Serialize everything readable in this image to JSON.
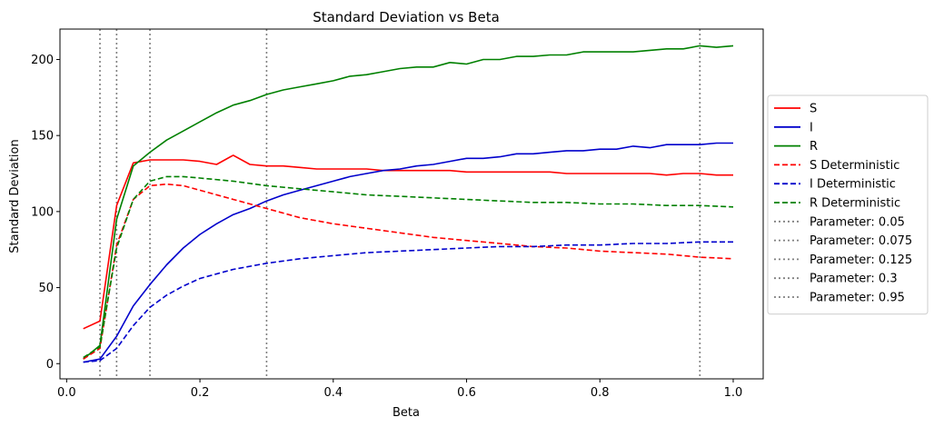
{
  "chart_data": {
    "type": "line",
    "title": "Standard Deviation vs Beta",
    "xlabel": "Beta",
    "ylabel": "Standard Deviation",
    "xlim": [
      -0.01,
      1.045
    ],
    "ylim": [
      -10,
      220
    ],
    "xticks": [
      0.0,
      0.2,
      0.4,
      0.6,
      0.8,
      1.0
    ],
    "xtick_labels": [
      "0.0",
      "0.2",
      "0.4",
      "0.6",
      "0.8",
      "1.0"
    ],
    "yticks": [
      0,
      50,
      100,
      150,
      200
    ],
    "ytick_labels": [
      "0",
      "50",
      "100",
      "150",
      "200"
    ],
    "grid": false,
    "legend_placement": "outside-right",
    "series": [
      {
        "name": "S",
        "color": "#ff0000",
        "style": "solid",
        "x": [
          0.025,
          0.05,
          0.075,
          0.1,
          0.125,
          0.15,
          0.175,
          0.2,
          0.225,
          0.25,
          0.275,
          0.3,
          0.325,
          0.35,
          0.375,
          0.4,
          0.425,
          0.45,
          0.475,
          0.5,
          0.525,
          0.55,
          0.575,
          0.6,
          0.625,
          0.65,
          0.675,
          0.7,
          0.725,
          0.75,
          0.775,
          0.8,
          0.825,
          0.85,
          0.875,
          0.9,
          0.925,
          0.95,
          0.975,
          1.0
        ],
        "y": [
          23,
          28,
          104,
          132,
          134,
          134,
          134,
          133,
          131,
          137,
          131,
          130,
          130,
          129,
          128,
          128,
          128,
          128,
          127,
          127,
          127,
          127,
          127,
          126,
          126,
          126,
          126,
          126,
          126,
          125,
          125,
          125,
          125,
          125,
          125,
          124,
          125,
          125,
          124,
          124
        ]
      },
      {
        "name": "I",
        "color": "#0000cc",
        "style": "solid",
        "x": [
          0.025,
          0.05,
          0.075,
          0.1,
          0.125,
          0.15,
          0.175,
          0.2,
          0.225,
          0.25,
          0.275,
          0.3,
          0.325,
          0.35,
          0.375,
          0.4,
          0.425,
          0.45,
          0.475,
          0.5,
          0.525,
          0.55,
          0.575,
          0.6,
          0.625,
          0.65,
          0.675,
          0.7,
          0.725,
          0.75,
          0.775,
          0.8,
          0.825,
          0.85,
          0.875,
          0.9,
          0.925,
          0.95,
          0.975,
          1.0
        ],
        "y": [
          1,
          3,
          18,
          38,
          52,
          65,
          76,
          85,
          92,
          98,
          102,
          107,
          111,
          114,
          117,
          120,
          123,
          125,
          127,
          128,
          130,
          131,
          133,
          135,
          135,
          136,
          138,
          138,
          139,
          140,
          140,
          141,
          141,
          143,
          142,
          144,
          144,
          144,
          145,
          145
        ]
      },
      {
        "name": "R",
        "color": "#008000",
        "style": "solid",
        "x": [
          0.025,
          0.05,
          0.075,
          0.1,
          0.125,
          0.15,
          0.175,
          0.2,
          0.225,
          0.25,
          0.275,
          0.3,
          0.325,
          0.35,
          0.375,
          0.4,
          0.425,
          0.45,
          0.475,
          0.5,
          0.525,
          0.55,
          0.575,
          0.6,
          0.625,
          0.65,
          0.675,
          0.7,
          0.725,
          0.75,
          0.775,
          0.8,
          0.825,
          0.85,
          0.875,
          0.9,
          0.925,
          0.95,
          0.975,
          1.0
        ],
        "y": [
          3,
          12,
          95,
          130,
          139,
          147,
          153,
          159,
          165,
          170,
          173,
          177,
          180,
          182,
          184,
          186,
          189,
          190,
          192,
          194,
          195,
          195,
          198,
          197,
          200,
          200,
          202,
          202,
          203,
          203,
          205,
          205,
          205,
          205,
          206,
          207,
          207,
          209,
          208,
          209
        ]
      },
      {
        "name": "S Deterministic",
        "color": "#ff0000",
        "style": "dashed",
        "x": [
          0.025,
          0.05,
          0.075,
          0.1,
          0.125,
          0.15,
          0.175,
          0.2,
          0.25,
          0.3,
          0.35,
          0.4,
          0.45,
          0.5,
          0.55,
          0.6,
          0.65,
          0.7,
          0.75,
          0.8,
          0.85,
          0.9,
          0.95,
          1.0
        ],
        "y": [
          3,
          10,
          78,
          108,
          117,
          118,
          117,
          114,
          108,
          102,
          96,
          92,
          89,
          86,
          83,
          81,
          79,
          77,
          76,
          74,
          73,
          72,
          70,
          69
        ]
      },
      {
        "name": "I Deterministic",
        "color": "#0000cc",
        "style": "dashed",
        "x": [
          0.025,
          0.05,
          0.075,
          0.1,
          0.125,
          0.15,
          0.175,
          0.2,
          0.25,
          0.3,
          0.35,
          0.4,
          0.45,
          0.5,
          0.55,
          0.6,
          0.65,
          0.7,
          0.75,
          0.8,
          0.85,
          0.9,
          0.95,
          1.0
        ],
        "y": [
          1,
          2,
          10,
          25,
          37,
          45,
          51,
          56,
          62,
          66,
          69,
          71,
          73,
          74,
          75,
          76,
          77,
          77,
          78,
          78,
          79,
          79,
          80,
          80
        ]
      },
      {
        "name": "R Deterministic",
        "color": "#008000",
        "style": "dashed",
        "x": [
          0.025,
          0.05,
          0.075,
          0.1,
          0.125,
          0.15,
          0.175,
          0.2,
          0.25,
          0.3,
          0.35,
          0.4,
          0.45,
          0.5,
          0.55,
          0.6,
          0.65,
          0.7,
          0.75,
          0.8,
          0.85,
          0.9,
          0.95,
          1.0
        ],
        "y": [
          4,
          11,
          76,
          108,
          120,
          123,
          123,
          122,
          120,
          117,
          115,
          113,
          111,
          110,
          109,
          108,
          107,
          106,
          106,
          105,
          105,
          104,
          104,
          103
        ]
      }
    ],
    "vlines": [
      {
        "name": "Parameter: 0.05",
        "x": 0.05,
        "color": "#808080",
        "style": "dotted"
      },
      {
        "name": "Parameter: 0.075",
        "x": 0.075,
        "color": "#808080",
        "style": "dotted"
      },
      {
        "name": "Parameter: 0.125",
        "x": 0.125,
        "color": "#808080",
        "style": "dotted"
      },
      {
        "name": "Parameter: 0.3",
        "x": 0.3,
        "color": "#808080",
        "style": "dotted"
      },
      {
        "name": "Parameter: 0.95",
        "x": 0.95,
        "color": "#808080",
        "style": "dotted"
      }
    ]
  }
}
